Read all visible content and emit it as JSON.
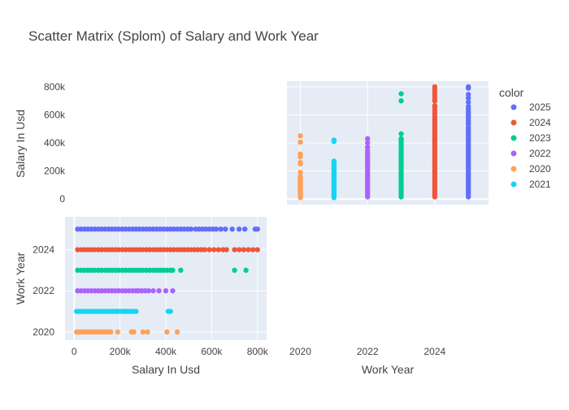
{
  "chart_data": {
    "type": "scatter",
    "title": "Scatter Matrix (Splom) of Salary and Work Year",
    "dimensions": [
      {
        "label": "Salary In Usd",
        "range": [
          -40000,
          840000
        ],
        "ticks": [
          0,
          200000,
          400000,
          600000,
          800000
        ],
        "tick_labels": [
          "0",
          "200k",
          "400k",
          "600k",
          "800k"
        ]
      },
      {
        "label": "Work Year",
        "range": [
          2019.6,
          2025.6
        ],
        "ticks": [
          2020,
          2022,
          2024
        ],
        "tick_labels": [
          "2020",
          "2022",
          "2024"
        ]
      }
    ],
    "legend": {
      "title": "color",
      "placement": "right"
    },
    "grid": true,
    "series": [
      {
        "name": "2025",
        "color": "#636efa",
        "work_year": 2025,
        "salaries": [
          15000,
          30000,
          45000,
          60000,
          75000,
          90000,
          105000,
          120000,
          135000,
          150000,
          165000,
          180000,
          195000,
          210000,
          225000,
          240000,
          255000,
          270000,
          285000,
          300000,
          315000,
          330000,
          345000,
          360000,
          375000,
          390000,
          405000,
          420000,
          435000,
          450000,
          465000,
          480000,
          495000,
          510000,
          530000,
          545000,
          560000,
          575000,
          590000,
          605000,
          620000,
          640000,
          660000,
          690000,
          720000,
          745000,
          790000,
          800000
        ]
      },
      {
        "name": "2024",
        "color": "#ef553b",
        "work_year": 2024,
        "salaries": [
          15000,
          30000,
          45000,
          60000,
          75000,
          90000,
          105000,
          120000,
          135000,
          150000,
          165000,
          180000,
          195000,
          210000,
          225000,
          240000,
          255000,
          270000,
          285000,
          300000,
          315000,
          330000,
          345000,
          360000,
          375000,
          390000,
          405000,
          420000,
          435000,
          450000,
          465000,
          480000,
          495000,
          510000,
          525000,
          540000,
          555000,
          570000,
          590000,
          610000,
          630000,
          650000,
          665000,
          700000,
          720000,
          740000,
          760000,
          780000,
          800000
        ]
      },
      {
        "name": "2023",
        "color": "#00cc96",
        "work_year": 2023,
        "salaries": [
          15000,
          30000,
          45000,
          60000,
          75000,
          90000,
          105000,
          120000,
          135000,
          150000,
          165000,
          180000,
          195000,
          210000,
          225000,
          240000,
          255000,
          270000,
          285000,
          300000,
          315000,
          330000,
          345000,
          360000,
          375000,
          390000,
          405000,
          420000,
          430000,
          465000,
          700000,
          750000
        ]
      },
      {
        "name": "2022",
        "color": "#ab63fa",
        "work_year": 2022,
        "salaries": [
          15000,
          30000,
          45000,
          60000,
          75000,
          90000,
          105000,
          120000,
          135000,
          150000,
          165000,
          180000,
          195000,
          210000,
          225000,
          240000,
          255000,
          270000,
          280000,
          295000,
          310000,
          325000,
          345000,
          370000,
          400000,
          430000
        ]
      },
      {
        "name": "2020",
        "color": "#ffa15a",
        "work_year": 2020,
        "salaries": [
          10000,
          20000,
          30000,
          40000,
          50000,
          60000,
          70000,
          80000,
          90000,
          100000,
          110000,
          120000,
          130000,
          140000,
          150000,
          160000,
          190000,
          250000,
          260000,
          300000,
          320000,
          405000,
          450000
        ]
      },
      {
        "name": "2021",
        "color": "#19d3f3",
        "work_year": 2021,
        "salaries": [
          10000,
          20000,
          30000,
          40000,
          50000,
          60000,
          70000,
          80000,
          90000,
          100000,
          110000,
          120000,
          130000,
          140000,
          150000,
          160000,
          170000,
          180000,
          190000,
          200000,
          210000,
          220000,
          230000,
          240000,
          250000,
          260000,
          270000,
          410000,
          420000
        ]
      }
    ]
  }
}
